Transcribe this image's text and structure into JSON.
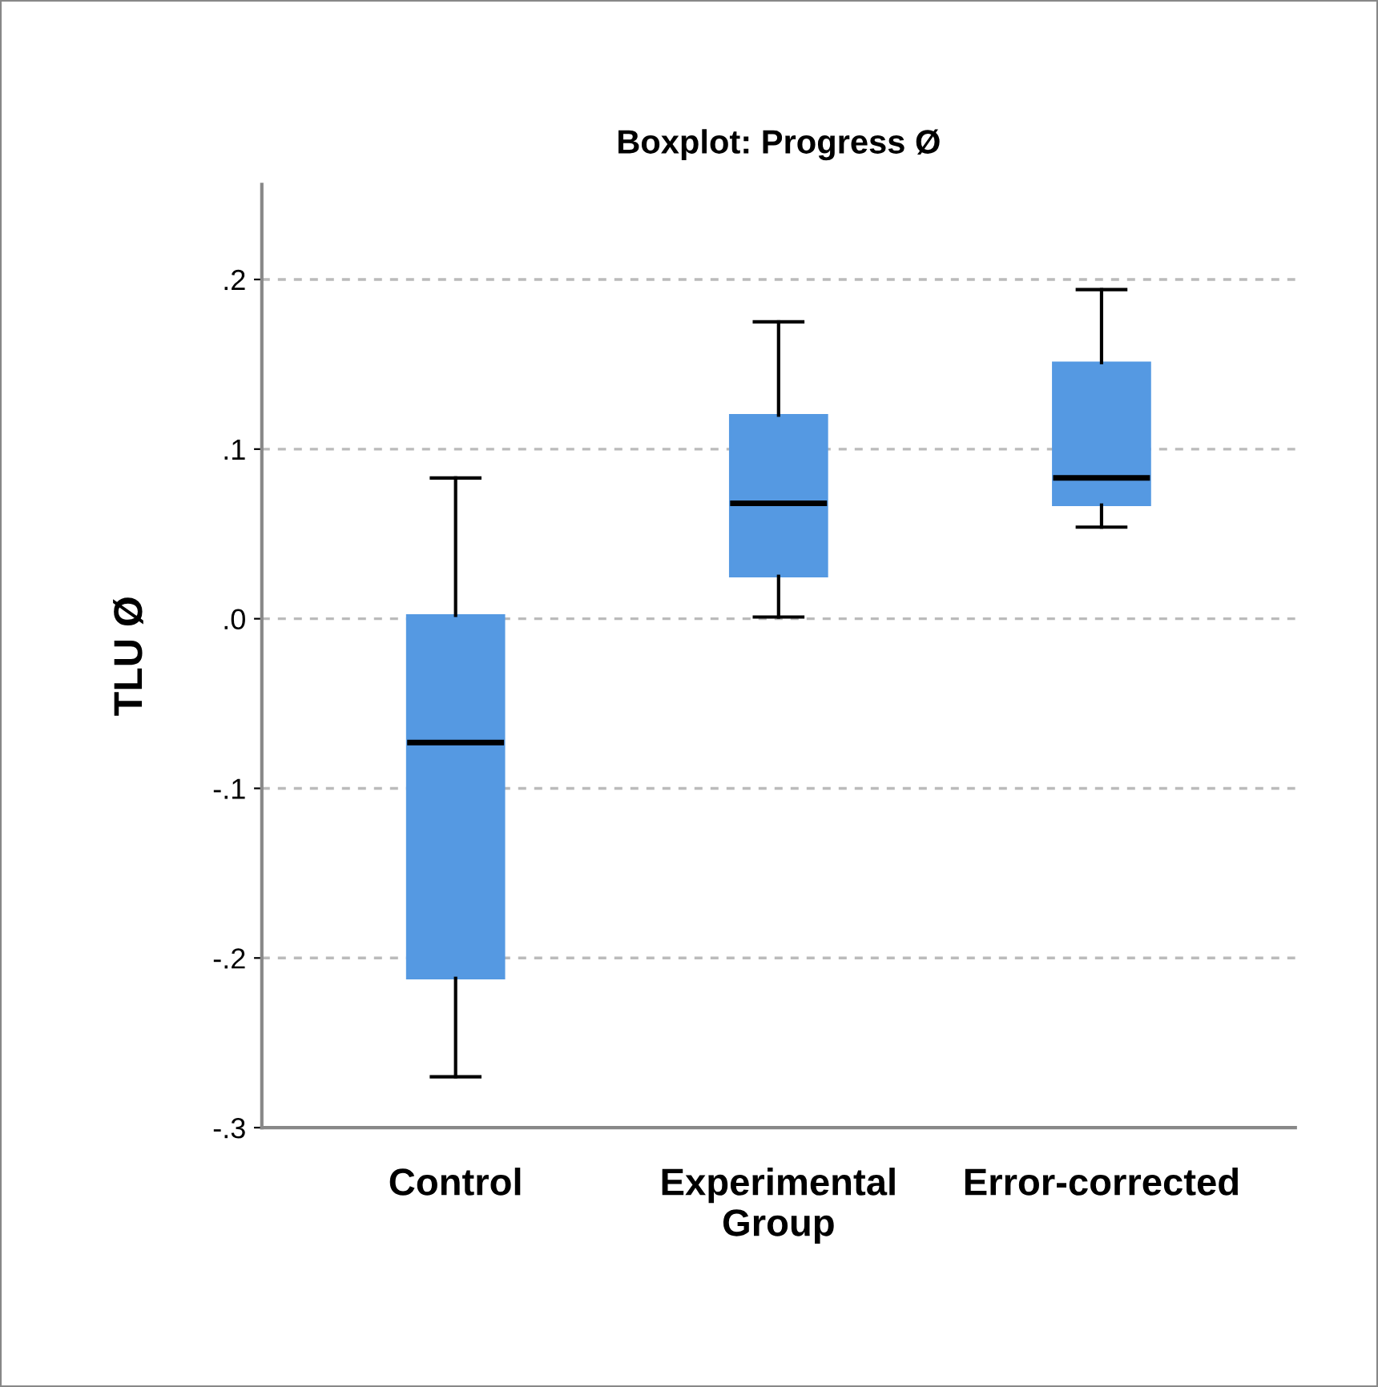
{
  "chart_data": {
    "type": "box",
    "title": "Boxplot: Progress Ø",
    "ylabel": "TLU Ø",
    "categories": [
      "Control",
      "Experimental\nGroup",
      "Error-corrected"
    ],
    "color": "#5599e2",
    "boxes": [
      {
        "low": -0.27,
        "q1": -0.212,
        "median": -0.073,
        "q3": 0.002,
        "high": 0.083
      },
      {
        "low": 0.001,
        "q1": 0.025,
        "median": 0.068,
        "q3": 0.12,
        "high": 0.175
      },
      {
        "low": 0.054,
        "q1": 0.067,
        "median": 0.083,
        "q3": 0.151,
        "high": 0.194
      }
    ],
    "ylim": [
      -0.3,
      0.256
    ],
    "yticks": [
      {
        "value": -0.3,
        "label": "-.3"
      },
      {
        "value": -0.2,
        "label": "-.2"
      },
      {
        "value": -0.1,
        "label": "-.1"
      },
      {
        "value": 0.0,
        "label": ".0"
      },
      {
        "value": 0.1,
        "label": ".1"
      },
      {
        "value": 0.2,
        "label": ".2"
      }
    ],
    "grid": "y",
    "legend": false
  }
}
